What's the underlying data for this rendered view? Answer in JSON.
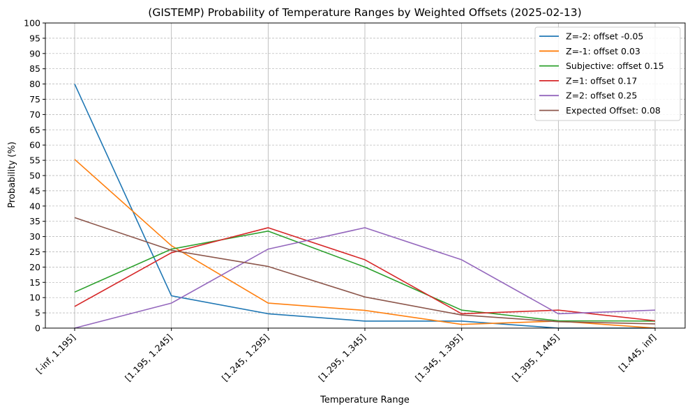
{
  "chart_data": {
    "type": "line",
    "title": "(GISTEMP) Probability of Temperature Ranges by Weighted Offsets (2025-02-13)",
    "xlabel": "Temperature Range",
    "ylabel": "Probability (%)",
    "ylim": [
      0,
      100
    ],
    "yticks": [
      0,
      5,
      10,
      15,
      20,
      25,
      30,
      35,
      40,
      45,
      50,
      55,
      60,
      65,
      70,
      75,
      80,
      85,
      90,
      95,
      100
    ],
    "categories": [
      "[-inf, 1.195]",
      "[1.195, 1.245]",
      "[1.245, 1.295]",
      "[1.295, 1.345]",
      "[1.345, 1.395]",
      "[1.395, 1.445]",
      "[1.445, inf]"
    ],
    "grid": true,
    "legend_position": "top-right",
    "series": [
      {
        "name": "Z=-2: offset -0.05",
        "color": "#1f77b4",
        "values": [
          80.0,
          10.6,
          4.7,
          2.3,
          2.3,
          0.0,
          0.0
        ]
      },
      {
        "name": "Z=-1: offset 0.03",
        "color": "#ff7f0e",
        "values": [
          55.3,
          27.0,
          8.2,
          5.8,
          1.2,
          2.3,
          0.0
        ]
      },
      {
        "name": "Subjective: offset 0.15",
        "color": "#2ca02c",
        "values": [
          11.8,
          25.9,
          31.8,
          20.0,
          5.9,
          2.4,
          2.3
        ]
      },
      {
        "name": "Z=1: offset 0.17",
        "color": "#d62728",
        "values": [
          7.1,
          24.7,
          32.9,
          22.4,
          4.7,
          5.9,
          2.4
        ]
      },
      {
        "name": "Z=2: offset 0.25",
        "color": "#9467bd",
        "values": [
          0.0,
          8.2,
          25.9,
          32.9,
          22.4,
          4.7,
          5.9
        ]
      },
      {
        "name": "Expected Offset: 0.08",
        "color": "#8c564b",
        "values": [
          36.2,
          25.5,
          20.2,
          10.2,
          4.3,
          2.1,
          1.4
        ]
      }
    ]
  }
}
